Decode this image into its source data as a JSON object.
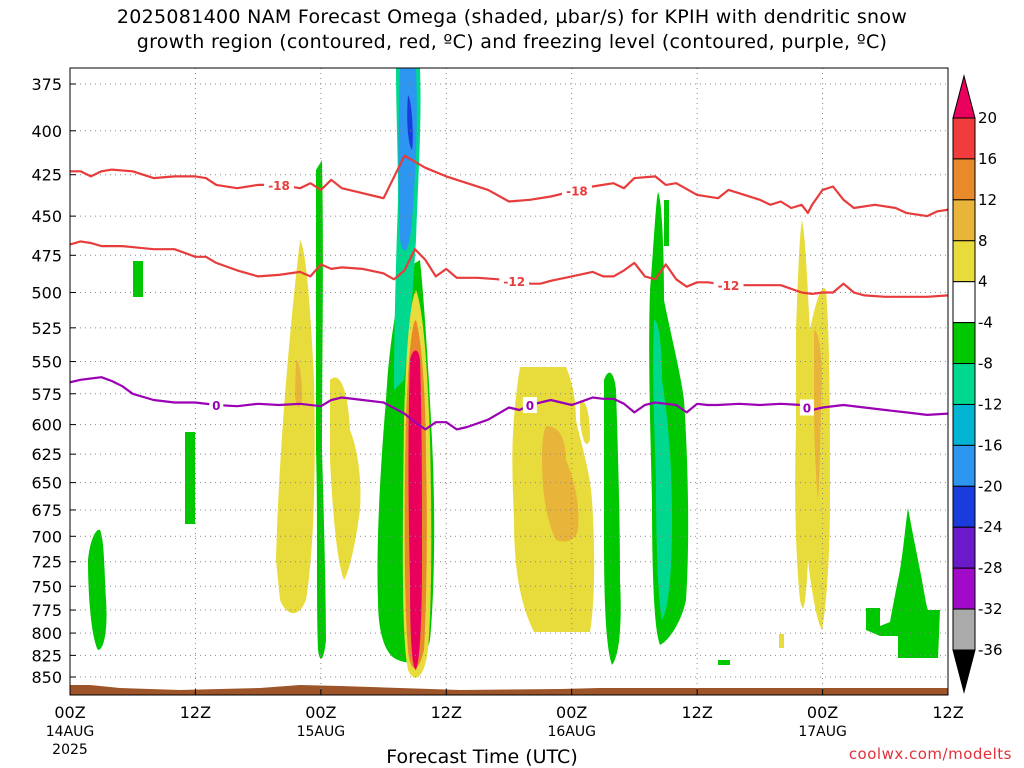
{
  "title": {
    "line1": "2025081400 NAM Forecast Omega (shaded, µbar/s) for KPIH with dendritic snow",
    "line2": "growth region (contoured, red, ºC) and freezing level (contoured, purple, ºC)"
  },
  "credit": "coolwx.com/modelts",
  "xlabel": "Forecast Time (UTC)",
  "chart_data": {
    "type": "heatmap",
    "xlabel": "Forecast Time (UTC)",
    "ylabel": "",
    "y_scale": "log-pressure",
    "ylim_hPa": [
      860,
      365
    ],
    "xlim_hours": [
      0,
      84
    ],
    "grid": "dotted",
    "y_ticks": [
      375,
      400,
      425,
      450,
      475,
      500,
      525,
      550,
      575,
      600,
      625,
      650,
      675,
      700,
      725,
      750,
      775,
      800,
      825,
      850
    ],
    "x_ticks": [
      {
        "hour": 0,
        "label": "00Z",
        "date": "14AUG",
        "year": "2025"
      },
      {
        "hour": 12,
        "label": "12Z",
        "date": "",
        "year": ""
      },
      {
        "hour": 24,
        "label": "00Z",
        "date": "15AUG",
        "year": ""
      },
      {
        "hour": 36,
        "label": "12Z",
        "date": "",
        "year": ""
      },
      {
        "hour": 48,
        "label": "00Z",
        "date": "16AUG",
        "year": ""
      },
      {
        "hour": 60,
        "label": "12Z",
        "date": "",
        "year": ""
      },
      {
        "hour": 72,
        "label": "00Z",
        "date": "17AUG",
        "year": ""
      },
      {
        "hour": 84,
        "label": "12Z",
        "date": "",
        "year": ""
      }
    ],
    "colorbar": {
      "levels": [
        20,
        16,
        12,
        8,
        4,
        -4,
        -8,
        -12,
        -16,
        -20,
        -24,
        -28,
        -32,
        -36
      ],
      "colors_top_to_bottom": [
        "#e8005c",
        "#f03c3c",
        "#e88a2a",
        "#e8b43a",
        "#e8dc3c",
        "#ffffff",
        "#00c800",
        "#00d890",
        "#00b4d2",
        "#2c96f0",
        "#1a3cdc",
        "#6a1ac8",
        "#a00ac8",
        "#aaaaaa",
        "#000000"
      ]
    },
    "contours": [
      {
        "name": "-18",
        "color": "#e83c3c",
        "units": "ºC",
        "points": [
          [
            0,
            423
          ],
          [
            1,
            423
          ],
          [
            2,
            426
          ],
          [
            3,
            423
          ],
          [
            4,
            422
          ],
          [
            6,
            423
          ],
          [
            8,
            427
          ],
          [
            10,
            426
          ],
          [
            12,
            426
          ],
          [
            13,
            427
          ],
          [
            14,
            431
          ],
          [
            16,
            433
          ],
          [
            18,
            431
          ],
          [
            20,
            431
          ],
          [
            22,
            433
          ],
          [
            23,
            430
          ],
          [
            24,
            434
          ],
          [
            25,
            428
          ],
          [
            26,
            433
          ],
          [
            28,
            436
          ],
          [
            30,
            439
          ],
          [
            32,
            414
          ],
          [
            34,
            421
          ],
          [
            36,
            426
          ],
          [
            38,
            430
          ],
          [
            40,
            434
          ],
          [
            42,
            441
          ],
          [
            44,
            440
          ],
          [
            46,
            438
          ],
          [
            48,
            435
          ],
          [
            50,
            432
          ],
          [
            52,
            430
          ],
          [
            53,
            433
          ],
          [
            54,
            427
          ],
          [
            56,
            426
          ],
          [
            57,
            431
          ],
          [
            58,
            430
          ],
          [
            60,
            437
          ],
          [
            62,
            439
          ],
          [
            63,
            434
          ],
          [
            64,
            436
          ],
          [
            66,
            440
          ],
          [
            67,
            443
          ],
          [
            68,
            441
          ],
          [
            69,
            445
          ],
          [
            70,
            443
          ],
          [
            70.6,
            448
          ],
          [
            71,
            443
          ],
          [
            72,
            434
          ],
          [
            73,
            432
          ],
          [
            74,
            440
          ],
          [
            75,
            445
          ],
          [
            77,
            443
          ],
          [
            79,
            445
          ],
          [
            80,
            448
          ],
          [
            82,
            450
          ],
          [
            83,
            447
          ],
          [
            84,
            446
          ]
        ],
        "labels": [
          {
            "x": 20,
            "text": "-18"
          },
          {
            "x": 48.5,
            "text": "-18"
          }
        ]
      },
      {
        "name": "-12",
        "color": "#e83c3c",
        "units": "ºC",
        "points": [
          [
            0,
            468
          ],
          [
            1,
            466
          ],
          [
            2,
            467
          ],
          [
            3,
            469
          ],
          [
            5,
            469
          ],
          [
            8,
            471
          ],
          [
            10,
            471
          ],
          [
            12,
            476
          ],
          [
            13,
            476
          ],
          [
            14,
            480
          ],
          [
            16,
            485
          ],
          [
            18,
            489
          ],
          [
            20,
            488
          ],
          [
            22,
            486
          ],
          [
            23,
            489
          ],
          [
            24,
            481
          ],
          [
            25,
            484
          ],
          [
            26,
            483
          ],
          [
            28,
            484
          ],
          [
            30,
            487
          ],
          [
            31,
            491
          ],
          [
            32,
            485
          ],
          [
            33,
            471
          ],
          [
            34,
            478
          ],
          [
            35,
            489
          ],
          [
            36,
            484
          ],
          [
            37,
            490
          ],
          [
            39,
            490
          ],
          [
            41,
            491
          ],
          [
            42,
            495
          ],
          [
            43,
            489
          ],
          [
            44,
            494
          ],
          [
            45,
            494
          ],
          [
            46,
            492
          ],
          [
            48,
            489
          ],
          [
            50,
            486
          ],
          [
            51,
            489
          ],
          [
            52,
            489
          ],
          [
            53,
            485
          ],
          [
            54,
            480
          ],
          [
            55,
            489
          ],
          [
            56,
            491
          ],
          [
            57,
            481
          ],
          [
            58,
            491
          ],
          [
            59,
            496
          ],
          [
            60,
            493
          ],
          [
            61,
            493
          ],
          [
            63,
            495
          ],
          [
            66,
            495
          ],
          [
            68,
            495
          ],
          [
            70,
            500
          ],
          [
            71,
            501
          ],
          [
            72,
            500
          ],
          [
            73,
            500
          ],
          [
            74,
            494
          ],
          [
            75,
            500
          ],
          [
            76,
            502
          ],
          [
            78,
            503
          ],
          [
            80,
            503
          ],
          [
            82,
            503
          ],
          [
            84,
            502
          ]
        ],
        "labels": [
          {
            "x": 42.5,
            "text": "-12"
          },
          {
            "x": 63,
            "text": "-12"
          }
        ]
      },
      {
        "name": "0",
        "color": "#9a00b4",
        "units": "ºC",
        "points": [
          [
            0,
            566
          ],
          [
            1,
            564
          ],
          [
            2,
            563
          ],
          [
            3,
            562
          ],
          [
            4,
            565
          ],
          [
            5,
            569
          ],
          [
            6,
            575
          ],
          [
            8,
            580
          ],
          [
            10,
            582
          ],
          [
            12,
            582
          ],
          [
            14,
            584
          ],
          [
            16,
            585
          ],
          [
            18,
            583
          ],
          [
            20,
            584
          ],
          [
            22,
            583
          ],
          [
            24,
            585
          ],
          [
            25,
            580
          ],
          [
            26,
            578
          ],
          [
            28,
            580
          ],
          [
            30,
            582
          ],
          [
            32,
            591
          ],
          [
            33,
            598
          ],
          [
            34,
            604
          ],
          [
            35,
            598
          ],
          [
            36,
            598
          ],
          [
            37,
            604
          ],
          [
            38,
            602
          ],
          [
            40,
            596
          ],
          [
            42,
            586
          ],
          [
            43,
            588
          ],
          [
            44,
            584
          ],
          [
            46,
            580
          ],
          [
            48,
            584
          ],
          [
            49,
            581
          ],
          [
            50,
            578
          ],
          [
            51,
            579
          ],
          [
            52,
            579
          ],
          [
            53,
            583
          ],
          [
            54,
            590
          ],
          [
            55,
            584
          ],
          [
            56,
            582
          ],
          [
            58,
            584
          ],
          [
            59,
            590
          ],
          [
            60,
            583
          ],
          [
            61,
            584
          ],
          [
            62,
            584
          ],
          [
            64,
            583
          ],
          [
            66,
            584
          ],
          [
            68,
            583
          ],
          [
            70,
            584
          ],
          [
            71,
            588
          ],
          [
            72,
            586
          ],
          [
            74,
            584
          ],
          [
            76,
            586
          ],
          [
            78,
            588
          ],
          [
            80,
            590
          ],
          [
            82,
            592
          ],
          [
            84,
            591
          ]
        ],
        "labels": [
          {
            "x": 14,
            "text": "0"
          },
          {
            "x": 44,
            "text": "0"
          },
          {
            "x": 70.5,
            "text": "0"
          }
        ]
      }
    ],
    "terrain_surface_hPa": 860
  }
}
